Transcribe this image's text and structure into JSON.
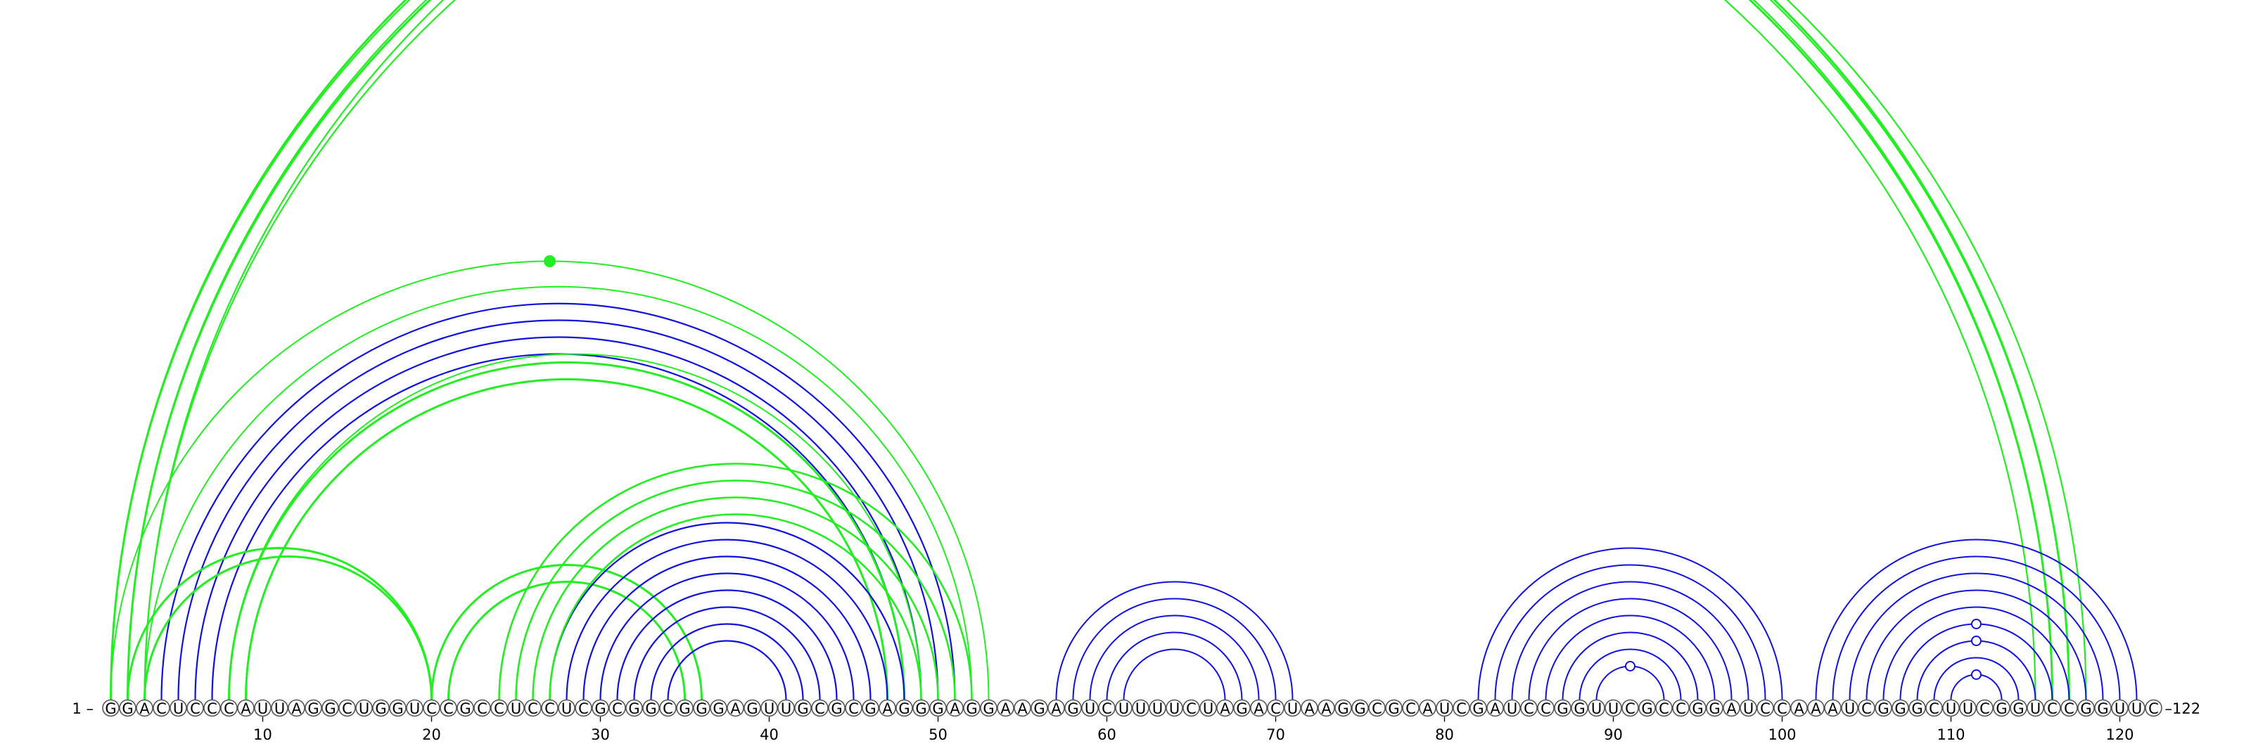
{
  "chart_data": {
    "type": "arc-diagram",
    "sequence": "GGACUCCCAUUAGGCUGGUCCGCCUCCUCGCGGCGGGAGUUGCGCGAGGGAGGAAGAGUCUUUUCUAGACUAAGGCGCAUCGAUCCGGUUCGCCGGAUCCAAAUCGGGCUUCGGUCCGGUUC",
    "start_label": "1",
    "end_label": "122",
    "ticks": [
      10,
      20,
      30,
      40,
      50,
      60,
      70,
      80,
      90,
      100,
      110,
      120
    ],
    "colors": {
      "primary": "#1010e0",
      "alternative": "#22ee22",
      "base_stroke": "#555555"
    },
    "helices": [
      {
        "color": "primary",
        "width": 2.2,
        "pairs": [
          [
            4,
            51
          ],
          [
            5,
            50
          ],
          [
            6,
            49
          ],
          [
            7,
            48
          ]
        ]
      },
      {
        "color": "alternative",
        "width": 2.2,
        "pairs": [
          [
            1,
            116
          ],
          [
            2,
            117
          ],
          [
            3,
            118
          ]
        ]
      },
      {
        "color": "alternative",
        "width": 3.0,
        "pairs": [
          [
            2,
            116
          ],
          [
            1,
            117
          ]
        ]
      },
      {
        "color": "alternative",
        "width": 2.2,
        "pairs": [
          [
            3,
            115
          ]
        ]
      },
      {
        "color": "alternative",
        "width": 2.0,
        "pairs": [
          [
            1,
            53
          ]
        ]
      },
      {
        "color": "alternative",
        "width": 2.0,
        "pairs": [
          [
            3,
            52
          ],
          [
            8,
            49
          ]
        ]
      },
      {
        "color": "alternative",
        "width": 3.0,
        "pairs": [
          [
            8,
            48
          ],
          [
            9,
            47
          ]
        ]
      },
      {
        "color": "alternative",
        "width": 3.0,
        "pairs": [
          [
            2,
            20
          ],
          [
            3,
            20
          ]
        ]
      },
      {
        "color": "alternative",
        "width": 3.0,
        "pairs": [
          [
            21,
            35
          ],
          [
            20,
            36
          ]
        ]
      },
      {
        "color": "primary",
        "width": 2.2,
        "pairs": [
          [
            27,
            48
          ],
          [
            28,
            47
          ],
          [
            29,
            46
          ],
          [
            30,
            45
          ],
          [
            31,
            44
          ],
          [
            32,
            43
          ],
          [
            33,
            42
          ],
          [
            34,
            41
          ]
        ]
      },
      {
        "color": "alternative",
        "width": 2.6,
        "pairs": [
          [
            24,
            52
          ],
          [
            25,
            51
          ],
          [
            26,
            50
          ],
          [
            27,
            49
          ]
        ]
      },
      {
        "color": "primary",
        "width": 2.0,
        "pairs": [
          [
            57,
            71
          ],
          [
            58,
            70
          ],
          [
            59,
            69
          ],
          [
            60,
            68
          ],
          [
            61,
            67
          ]
        ]
      },
      {
        "color": "primary",
        "width": 2.0,
        "pairs": [
          [
            82,
            100
          ],
          [
            83,
            99
          ],
          [
            84,
            98
          ],
          [
            85,
            97
          ],
          [
            86,
            96
          ],
          [
            87,
            95
          ],
          [
            88,
            94
          ],
          [
            89,
            93
          ]
        ]
      },
      {
        "color": "primary",
        "width": 2.0,
        "pairs": [
          [
            102,
            121
          ],
          [
            103,
            120
          ],
          [
            104,
            119
          ],
          [
            105,
            118
          ],
          [
            106,
            117
          ],
          [
            107,
            116
          ],
          [
            108,
            115
          ],
          [
            109,
            114
          ],
          [
            110,
            113
          ]
        ]
      }
    ],
    "markers": [
      {
        "pair": [
          1,
          53
        ],
        "kind": "filled",
        "color": "alternative"
      },
      {
        "pair": [
          89,
          93
        ],
        "kind": "open",
        "color": "primary"
      },
      {
        "pair": [
          108,
          115
        ],
        "kind": "open",
        "color": "primary"
      },
      {
        "pair": [
          110,
          113
        ],
        "kind": "open",
        "color": "primary"
      },
      {
        "pair": [
          107,
          116
        ],
        "kind": "open",
        "color": "primary"
      }
    ]
  }
}
